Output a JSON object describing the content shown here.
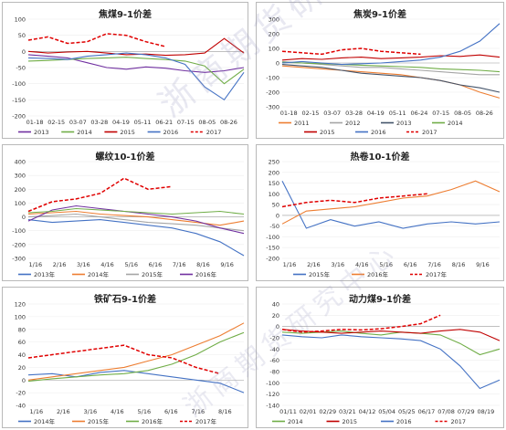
{
  "watermark": "浙商期货研究中心",
  "chart_data": [
    {
      "type": "line",
      "title": "焦煤9-1价差",
      "ylim": [
        -200,
        100
      ],
      "yticks": [
        100,
        50,
        0,
        -50,
        -100,
        -150,
        -200
      ],
      "ytick_labels": [
        "100",
        "50",
        "0",
        "-50",
        "-100",
        "-150",
        "-200"
      ],
      "xtick_labels": [
        "01-18",
        "02-15",
        "03-07",
        "03-28",
        "04-19",
        "05-11",
        "06-21",
        "07-15",
        "08-05",
        "08-26"
      ],
      "series": [
        {
          "name": "2013",
          "color": "#7030a0",
          "dash": false,
          "values": [
            -10,
            -15,
            -20,
            -35,
            -50,
            -55,
            -48,
            -52,
            -60,
            -65,
            -60,
            -50
          ]
        },
        {
          "name": "2014",
          "color": "#70ad47",
          "dash": false,
          "values": [
            -30,
            -28,
            -25,
            -22,
            -20,
            -18,
            -22,
            -25,
            -30,
            -45,
            -100,
            -55
          ]
        },
        {
          "name": "2015",
          "color": "#c00000",
          "dash": false,
          "values": [
            0,
            -5,
            -2,
            0,
            -5,
            -10,
            -8,
            -12,
            -10,
            -5,
            40,
            -5
          ]
        },
        {
          "name": "2016",
          "color": "#4472c4",
          "dash": false,
          "values": [
            -20,
            -22,
            -25,
            -15,
            -10,
            -5,
            -10,
            -20,
            -40,
            -110,
            -150,
            -65
          ]
        },
        {
          "name": "2017",
          "color": "#e00000",
          "dash": true,
          "values": [
            35,
            45,
            25,
            30,
            55,
            50,
            30,
            15,
            null,
            null,
            null,
            null
          ]
        }
      ]
    },
    {
      "type": "line",
      "title": "焦炭9-1价差",
      "ylim": [
        -300,
        300
      ],
      "yticks": [
        300,
        200,
        100,
        0,
        -100,
        -200,
        -300
      ],
      "ytick_labels": [
        "300",
        "200",
        "100",
        "0",
        "-100",
        "-200",
        "-300"
      ],
      "xtick_labels": [
        "01-18",
        "02-15",
        "03-07",
        "03-28",
        "04-19",
        "05-11",
        "06-24",
        "07-15",
        "08-05",
        "08-26"
      ],
      "series": [
        {
          "name": "2011",
          "color": "#ed7d31",
          "dash": false,
          "values": [
            -20,
            -30,
            -40,
            -50,
            -60,
            -70,
            -80,
            -100,
            -120,
            -150,
            -200,
            -240
          ]
        },
        {
          "name": "2012",
          "color": "#a5a5a5",
          "dash": false,
          "values": [
            10,
            0,
            -10,
            -20,
            -30,
            -30,
            -40,
            -50,
            -60,
            -70,
            -80,
            -80
          ]
        },
        {
          "name": "2013",
          "color": "#44546a",
          "dash": false,
          "values": [
            -10,
            -20,
            -30,
            -50,
            -70,
            -80,
            -90,
            -100,
            -120,
            -150,
            -170,
            -200
          ]
        },
        {
          "name": "2014",
          "color": "#70ad47",
          "dash": false,
          "values": [
            5,
            0,
            -5,
            -10,
            -15,
            -20,
            -25,
            -30,
            -40,
            -45,
            -50,
            -60
          ]
        },
        {
          "name": "2015",
          "color": "#c00000",
          "dash": false,
          "values": [
            20,
            30,
            25,
            35,
            40,
            30,
            35,
            40,
            50,
            45,
            55,
            40
          ]
        },
        {
          "name": "2016",
          "color": "#4472c4",
          "dash": false,
          "values": [
            0,
            10,
            0,
            -10,
            -5,
            0,
            10,
            20,
            40,
            80,
            150,
            270
          ]
        },
        {
          "name": "2017",
          "color": "#e00000",
          "dash": true,
          "values": [
            80,
            70,
            60,
            90,
            100,
            80,
            70,
            60,
            null,
            null,
            null,
            null
          ]
        }
      ]
    },
    {
      "type": "line",
      "title": "螺纹10-1价差",
      "ylim": [
        -300,
        400
      ],
      "yticks": [
        400,
        300,
        200,
        100,
        0,
        -100,
        -200,
        -300
      ],
      "ytick_labels": [
        "400",
        "300",
        "200",
        "100",
        "0",
        "-100",
        "-200",
        "-300"
      ],
      "xtick_labels": [
        "1/16",
        "2/16",
        "3/16",
        "4/16",
        "5/16",
        "6/16",
        "7/16",
        "8/16",
        "9/16"
      ],
      "series": [
        {
          "name": "2013年",
          "color": "#4472c4",
          "dash": false,
          "values": [
            -20,
            -40,
            -30,
            -20,
            -40,
            -60,
            -80,
            -120,
            -180,
            -280
          ]
        },
        {
          "name": "2014年",
          "color": "#ed7d31",
          "dash": false,
          "values": [
            20,
            30,
            40,
            20,
            10,
            0,
            -20,
            -40,
            -60,
            -30
          ]
        },
        {
          "name": "2015年",
          "color": "#a5a5a5",
          "dash": false,
          "values": [
            0,
            10,
            20,
            0,
            -20,
            -40,
            -50,
            -60,
            -80,
            -100
          ]
        },
        {
          "name": "2016年",
          "color": "#7030a0",
          "dash": false,
          "values": [
            -30,
            50,
            80,
            60,
            40,
            20,
            0,
            -30,
            -80,
            -120
          ]
        },
        {
          "name": "",
          "color": "#70ad47",
          "dash": false,
          "values": [
            30,
            40,
            60,
            50,
            40,
            30,
            20,
            30,
            40,
            20
          ]
        },
        {
          "name": "",
          "color": "#e00000",
          "dash": true,
          "values": [
            40,
            110,
            130,
            170,
            280,
            200,
            220,
            null,
            null,
            null
          ]
        }
      ]
    },
    {
      "type": "line",
      "title": "热卷10-1价差",
      "ylim": [
        -200,
        250
      ],
      "yticks": [
        250,
        200,
        150,
        100,
        50,
        0,
        -50,
        -100,
        -150,
        -200
      ],
      "ytick_labels": [
        "250",
        "200",
        "150",
        "100",
        "50",
        "0",
        "-50",
        "-100",
        "-150",
        "-200"
      ],
      "xtick_labels": [
        "1/16",
        "2/16",
        "3/16",
        "4/16",
        "5/16",
        "6/16",
        "7/16",
        "8/16",
        "9/16"
      ],
      "series": [
        {
          "name": "2015年",
          "color": "#4472c4",
          "dash": false,
          "values": [
            160,
            -60,
            -20,
            -50,
            -30,
            -60,
            -40,
            -30,
            -40,
            -30
          ]
        },
        {
          "name": "2016年",
          "color": "#ed7d31",
          "dash": false,
          "values": [
            -40,
            20,
            30,
            40,
            60,
            80,
            90,
            120,
            160,
            110
          ]
        },
        {
          "name": "2017年",
          "color": "#e00000",
          "dash": true,
          "values": [
            40,
            60,
            70,
            60,
            80,
            90,
            100,
            null,
            null,
            null
          ]
        }
      ]
    },
    {
      "type": "line",
      "title": "铁矿石9-1价差",
      "ylim": [
        -40,
        120
      ],
      "yticks": [
        120,
        100,
        80,
        60,
        40,
        20,
        0,
        -20,
        -40
      ],
      "ytick_labels": [
        "120",
        "100",
        "80",
        "60",
        "40",
        "20",
        "0",
        "-20",
        "-40"
      ],
      "xtick_labels": [
        "1/16",
        "2/16",
        "3/16",
        "4/16",
        "5/16",
        "6/16",
        "7/16",
        "8/16"
      ],
      "series": [
        {
          "name": "2014年",
          "color": "#4472c4",
          "dash": false,
          "values": [
            8,
            10,
            5,
            12,
            15,
            10,
            5,
            0,
            -5,
            -20
          ]
        },
        {
          "name": "2015年",
          "color": "#ed7d31",
          "dash": false,
          "values": [
            0,
            5,
            10,
            15,
            20,
            30,
            40,
            55,
            70,
            90
          ]
        },
        {
          "name": "2016年",
          "color": "#70ad47",
          "dash": false,
          "values": [
            -2,
            2,
            5,
            8,
            10,
            15,
            25,
            40,
            60,
            75
          ]
        },
        {
          "name": "2017年",
          "color": "#e00000",
          "dash": true,
          "values": [
            35,
            40,
            45,
            50,
            55,
            40,
            35,
            20,
            10,
            null
          ]
        }
      ]
    },
    {
      "type": "line",
      "title": "动力煤9-1价差",
      "ylim": [
        -140,
        40
      ],
      "yticks": [
        40,
        20,
        0,
        -20,
        -40,
        -60,
        -80,
        -100,
        -120,
        -140
      ],
      "ytick_labels": [
        "40",
        "20",
        "0",
        "-20",
        "-40",
        "-60",
        "-80",
        "-100",
        "-120",
        "-140"
      ],
      "xtick_labels": [
        "01/11",
        "02/01",
        "02/29",
        "03/21",
        "04/12",
        "05/04",
        "05/25",
        "06/17",
        "07/08",
        "07/29",
        "08/19"
      ],
      "series": [
        {
          "name": "2014",
          "color": "#70ad47",
          "dash": false,
          "values": [
            -10,
            -12,
            -10,
            -8,
            -12,
            -15,
            -10,
            -12,
            -15,
            -30,
            -50,
            -40
          ]
        },
        {
          "name": "2015",
          "color": "#c00000",
          "dash": false,
          "values": [
            -5,
            -8,
            -10,
            -12,
            -10,
            -8,
            -10,
            -12,
            -8,
            -5,
            -10,
            -25
          ]
        },
        {
          "name": "2016",
          "color": "#4472c4",
          "dash": false,
          "values": [
            -15,
            -18,
            -20,
            -15,
            -18,
            -20,
            -22,
            -25,
            -40,
            -70,
            -110,
            -95
          ]
        },
        {
          "name": "2017",
          "color": "#e00000",
          "dash": true,
          "values": [
            -5,
            -10,
            -8,
            -5,
            -6,
            -4,
            0,
            5,
            20,
            null,
            null,
            null
          ]
        }
      ]
    }
  ]
}
